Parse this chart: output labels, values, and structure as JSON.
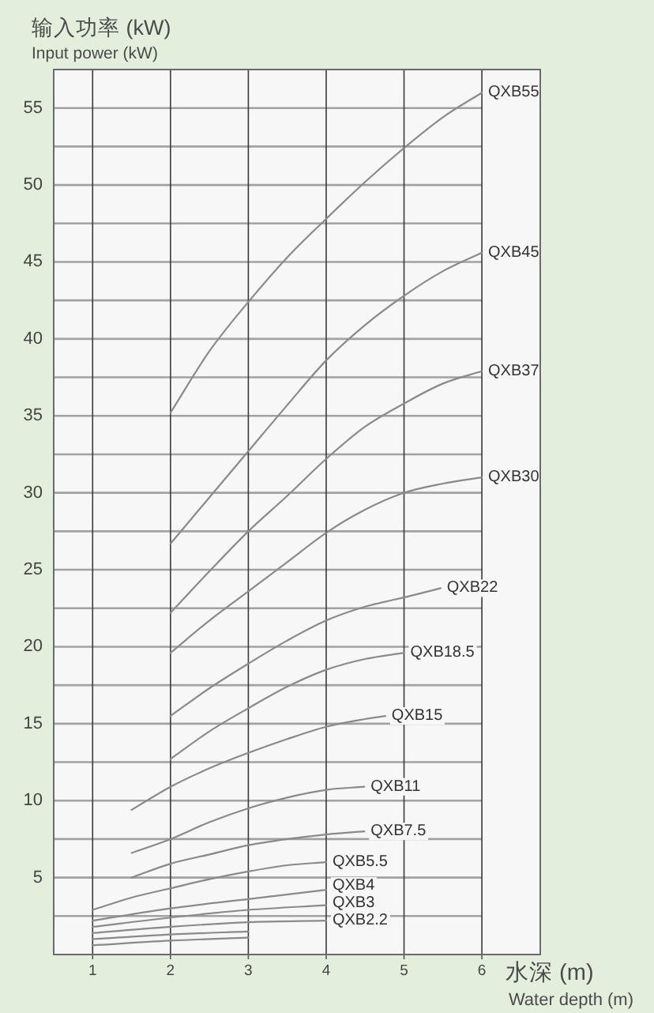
{
  "chart_data": {
    "type": "line",
    "ylabel": "输入功率 (kW)\nInput power (kW)",
    "xlabel": "水深 (m)\nWater depth (m)",
    "xlim": [
      0.5,
      6.75
    ],
    "xticks": [
      1,
      2,
      3,
      4,
      5,
      6
    ],
    "ylim": [
      0,
      57.5
    ],
    "yticks": [
      {
        "value": 2.5,
        "label": null
      },
      5,
      {
        "value": 7.5,
        "label": null
      },
      10,
      {
        "value": 12.5,
        "label": null
      },
      15,
      {
        "value": 17.5,
        "label": null
      },
      20,
      {
        "value": 22.5,
        "label": null
      },
      25,
      {
        "value": 27.5,
        "label": null
      },
      30,
      {
        "value": 32.5,
        "label": null
      },
      35,
      {
        "value": 37.5,
        "label": null
      },
      40,
      {
        "value": 42.5,
        "label": null
      },
      45,
      {
        "value": 47.5,
        "label": null
      },
      50,
      {
        "value": 52.5,
        "label": null
      },
      55
    ],
    "grid": true,
    "series": [
      {
        "name": "QXB55",
        "color": "#8a8a8a",
        "x": [
          2,
          2.5,
          3,
          3.5,
          4,
          4.5,
          5,
          5.5,
          6
        ],
        "values": [
          35.2,
          39.2,
          42.4,
          45.3,
          47.8,
          50.2,
          52.4,
          54.4,
          56.0
        ]
      },
      {
        "name": "QXB45",
        "color": "#8a8a8a",
        "x": [
          2,
          2.5,
          3,
          3.5,
          4,
          4.5,
          5,
          5.5,
          6
        ],
        "values": [
          26.7,
          29.7,
          32.7,
          35.7,
          38.6,
          40.9,
          42.8,
          44.4,
          45.6
        ]
      },
      {
        "name": "QXB37",
        "color": "#8a8a8a",
        "x": [
          2,
          2.5,
          3,
          3.5,
          4,
          4.5,
          5,
          5.5,
          6
        ],
        "values": [
          22.2,
          24.9,
          27.5,
          29.8,
          32.2,
          34.3,
          35.8,
          37.1,
          37.9
        ]
      },
      {
        "name": "QXB30",
        "color": "#8a8a8a",
        "x": [
          2,
          2.5,
          3,
          3.5,
          4,
          4.5,
          5,
          5.5,
          6
        ],
        "values": [
          19.6,
          21.7,
          23.6,
          25.5,
          27.4,
          28.9,
          30.0,
          30.6,
          31.0
        ]
      },
      {
        "name": "QXB22",
        "color": "#8a8a8a",
        "x": [
          2,
          2.5,
          3,
          3.5,
          4,
          4.5,
          5,
          5.47
        ],
        "values": [
          15.5,
          17.3,
          18.9,
          20.4,
          21.7,
          22.6,
          23.2,
          23.8
        ]
      },
      {
        "name": "QXB18.5",
        "color": "#8a8a8a",
        "x": [
          2,
          2.5,
          3,
          3.5,
          4,
          4.5,
          5
        ],
        "values": [
          12.7,
          14.5,
          16.0,
          17.4,
          18.5,
          19.2,
          19.6
        ]
      },
      {
        "name": "QXB15",
        "color": "#8a8a8a",
        "x": [
          1.5,
          2,
          2.5,
          3,
          3.5,
          4,
          4.5,
          4.76
        ],
        "values": [
          9.4,
          10.9,
          12.1,
          13.1,
          14.0,
          14.8,
          15.3,
          15.5
        ]
      },
      {
        "name": "QXB11",
        "color": "#8a8a8a",
        "x": [
          1.5,
          2,
          2.5,
          3,
          3.5,
          4,
          4.49
        ],
        "values": [
          6.6,
          7.5,
          8.6,
          9.5,
          10.2,
          10.7,
          10.9
        ]
      },
      {
        "name": "QXB7.5",
        "color": "#8a8a8a",
        "x": [
          1.5,
          2,
          2.5,
          3,
          3.5,
          4,
          4.49
        ],
        "values": [
          5.0,
          5.9,
          6.5,
          7.1,
          7.5,
          7.8,
          8.0
        ]
      },
      {
        "name": "QXB5.5",
        "color": "#8a8a8a",
        "x": [
          1,
          1.5,
          2,
          2.5,
          3,
          3.5,
          4
        ],
        "values": [
          2.9,
          3.7,
          4.3,
          4.9,
          5.4,
          5.8,
          6.0
        ]
      },
      {
        "name": "QXB4",
        "color": "#8a8a8a",
        "x": [
          1,
          2,
          3,
          4
        ],
        "values": [
          2.2,
          3.0,
          3.6,
          4.2
        ]
      },
      {
        "name": "QXB3",
        "color": "#8a8a8a",
        "x": [
          1,
          2,
          3,
          4
        ],
        "values": [
          1.8,
          2.4,
          2.9,
          3.2
        ]
      },
      {
        "name": "QXB2.2",
        "color": "#8a8a8a",
        "x": [
          1,
          2,
          3,
          4
        ],
        "values": [
          1.4,
          1.8,
          2.1,
          2.2
        ]
      },
      {
        "color": "#8a8a8a",
        "x": [
          1,
          2,
          3
        ],
        "values": [
          1.0,
          1.3,
          1.5
        ]
      },
      {
        "color": "#8a8a8a",
        "x": [
          1,
          2,
          3
        ],
        "values": [
          0.6,
          0.9,
          1.1
        ]
      }
    ]
  }
}
